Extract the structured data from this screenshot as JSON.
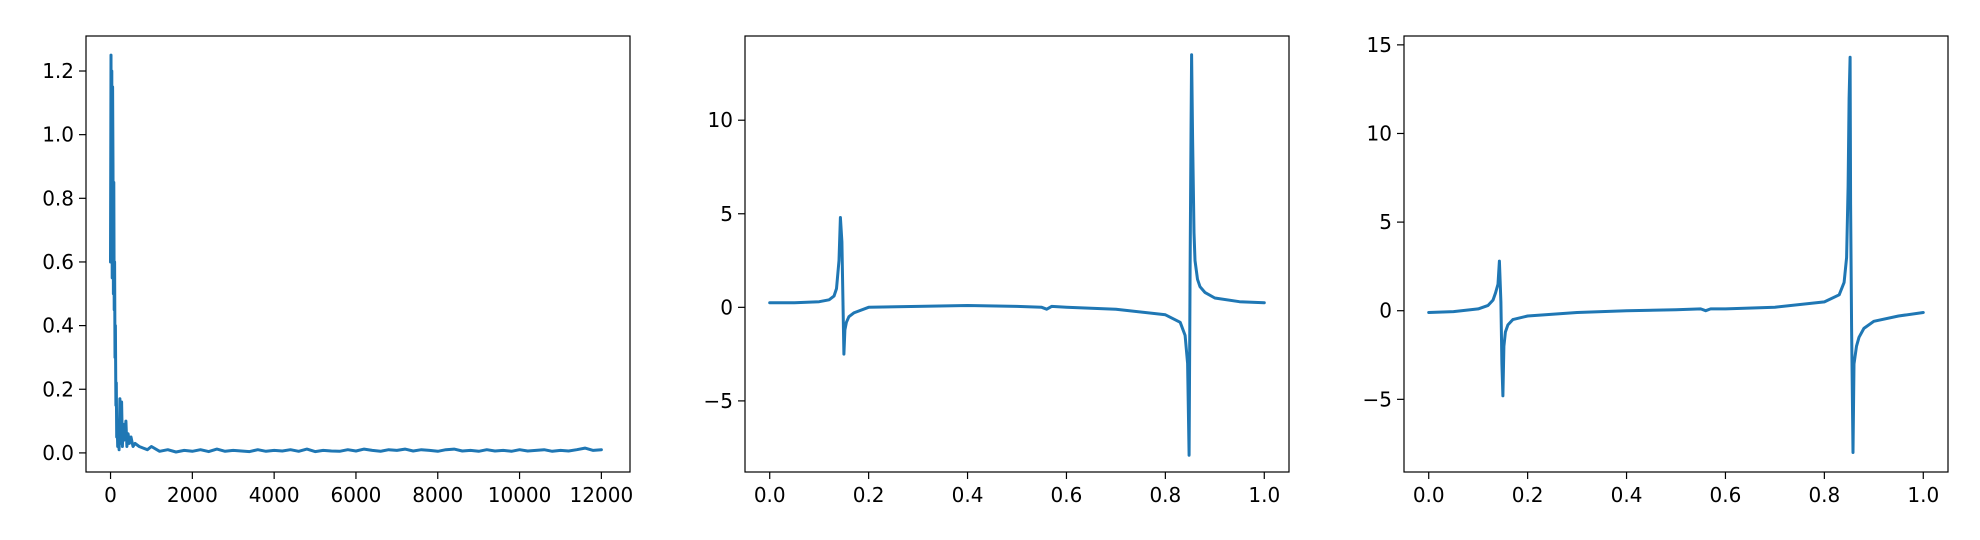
{
  "figure": {
    "line_color": "#1f77b4"
  },
  "chart_data": [
    {
      "type": "line",
      "title": "",
      "xlabel": "",
      "ylabel": "",
      "xlim": [
        -600,
        12700
      ],
      "ylim": [
        -0.06,
        1.31
      ],
      "grid": false,
      "legend": "none",
      "x_ticks": [
        0,
        2000,
        4000,
        6000,
        8000,
        10000,
        12000
      ],
      "x_tick_labels": [
        "0",
        "2000",
        "4000",
        "6000",
        "8000",
        "10000",
        "12000"
      ],
      "y_ticks": [
        0.0,
        0.2,
        0.4,
        0.6,
        0.8,
        1.0,
        1.2
      ],
      "y_tick_labels": [
        "0.0",
        "0.2",
        "0.4",
        "0.6",
        "0.8",
        "1.0",
        "1.2"
      ],
      "series": [
        {
          "x": [
            0,
            10,
            20,
            30,
            40,
            50,
            60,
            70,
            80,
            90,
            100,
            110,
            120,
            130,
            140,
            150,
            160,
            175,
            190,
            210,
            230,
            250,
            270,
            290,
            310,
            330,
            350,
            375,
            400,
            430,
            460,
            500,
            550,
            600,
            700,
            800,
            900,
            1000,
            1200,
            1400,
            1600,
            1800,
            2000,
            2200,
            2400,
            2600,
            2800,
            3000,
            3200,
            3400,
            3600,
            3800,
            4000,
            4200,
            4400,
            4600,
            4800,
            5000,
            5200,
            5400,
            5600,
            5800,
            6000,
            6200,
            6400,
            6600,
            6800,
            7000,
            7200,
            7400,
            7600,
            7800,
            8000,
            8200,
            8400,
            8600,
            8800,
            9000,
            9200,
            9400,
            9600,
            9800,
            10000,
            10200,
            10400,
            10600,
            10800,
            11000,
            11200,
            11400,
            11600,
            11800,
            12000
          ],
          "values": [
            0.6,
            1.25,
            0.62,
            1.2,
            0.55,
            1.15,
            0.9,
            0.5,
            0.85,
            0.45,
            0.6,
            0.3,
            0.4,
            0.15,
            0.22,
            0.05,
            0.1,
            0.02,
            0.06,
            0.01,
            0.17,
            0.03,
            0.16,
            0.02,
            0.09,
            0.04,
            0.06,
            0.1,
            0.02,
            0.06,
            0.03,
            0.05,
            0.02,
            0.03,
            0.02,
            0.015,
            0.01,
            0.02,
            0.005,
            0.01,
            0.003,
            0.008,
            0.005,
            0.01,
            0.004,
            0.012,
            0.005,
            0.008,
            0.006,
            0.004,
            0.01,
            0.005,
            0.008,
            0.006,
            0.01,
            0.005,
            0.012,
            0.004,
            0.008,
            0.006,
            0.005,
            0.01,
            0.006,
            0.012,
            0.008,
            0.005,
            0.01,
            0.008,
            0.012,
            0.006,
            0.01,
            0.008,
            0.005,
            0.01,
            0.012,
            0.006,
            0.008,
            0.005,
            0.01,
            0.006,
            0.008,
            0.005,
            0.01,
            0.006,
            0.008,
            0.01,
            0.005,
            0.008,
            0.006,
            0.01,
            0.015,
            0.008,
            0.01
          ]
        }
      ]
    },
    {
      "type": "line",
      "title": "",
      "xlabel": "",
      "ylabel": "",
      "xlim": [
        -0.05,
        1.05
      ],
      "ylim": [
        -8.8,
        14.5
      ],
      "grid": false,
      "legend": "none",
      "x_ticks": [
        0.0,
        0.2,
        0.4,
        0.6,
        0.8,
        1.0
      ],
      "x_tick_labels": [
        "0.0",
        "0.2",
        "0.4",
        "0.6",
        "0.8",
        "1.0"
      ],
      "y_ticks": [
        -5,
        0,
        5,
        10
      ],
      "y_tick_labels": [
        "−5",
        "0",
        "5",
        "10"
      ],
      "series": [
        {
          "x": [
            0.0,
            0.05,
            0.1,
            0.12,
            0.13,
            0.135,
            0.14,
            0.143,
            0.146,
            0.148,
            0.15,
            0.152,
            0.155,
            0.16,
            0.17,
            0.2,
            0.3,
            0.4,
            0.5,
            0.55,
            0.56,
            0.57,
            0.6,
            0.7,
            0.8,
            0.83,
            0.84,
            0.845,
            0.848,
            0.85,
            0.852,
            0.853,
            0.855,
            0.858,
            0.86,
            0.865,
            0.87,
            0.88,
            0.9,
            0.95,
            1.0
          ],
          "values": [
            0.25,
            0.25,
            0.3,
            0.4,
            0.6,
            1.0,
            2.5,
            4.8,
            3.5,
            0.5,
            -2.5,
            -1.2,
            -0.8,
            -0.5,
            -0.3,
            0.0,
            0.05,
            0.1,
            0.05,
            0.0,
            -0.1,
            0.05,
            0.0,
            -0.1,
            -0.4,
            -0.8,
            -1.5,
            -3.0,
            -7.9,
            2.0,
            10.0,
            13.5,
            9.0,
            4.0,
            2.5,
            1.5,
            1.1,
            0.8,
            0.5,
            0.3,
            0.25
          ]
        }
      ]
    },
    {
      "type": "line",
      "title": "",
      "xlabel": "",
      "ylabel": "",
      "xlim": [
        -0.05,
        1.05
      ],
      "ylim": [
        -9.1,
        15.5
      ],
      "grid": false,
      "legend": "none",
      "x_ticks": [
        0.0,
        0.2,
        0.4,
        0.6,
        0.8,
        1.0
      ],
      "x_tick_labels": [
        "0.0",
        "0.2",
        "0.4",
        "0.6",
        "0.8",
        "1.0"
      ],
      "y_ticks": [
        -5,
        0,
        5,
        10,
        15
      ],
      "y_tick_labels": [
        "−5",
        "0",
        "5",
        "10",
        "15"
      ],
      "series": [
        {
          "x": [
            0.0,
            0.05,
            0.1,
            0.12,
            0.13,
            0.135,
            0.14,
            0.143,
            0.146,
            0.148,
            0.15,
            0.152,
            0.155,
            0.16,
            0.17,
            0.2,
            0.3,
            0.4,
            0.5,
            0.55,
            0.56,
            0.57,
            0.6,
            0.7,
            0.8,
            0.83,
            0.84,
            0.845,
            0.848,
            0.85,
            0.852,
            0.853,
            0.855,
            0.858,
            0.86,
            0.865,
            0.87,
            0.88,
            0.9,
            0.95,
            1.0
          ],
          "values": [
            -0.1,
            -0.05,
            0.1,
            0.3,
            0.6,
            1.0,
            1.5,
            2.8,
            0.5,
            -3.0,
            -4.8,
            -2.0,
            -1.2,
            -0.8,
            -0.5,
            -0.3,
            -0.1,
            0.0,
            0.05,
            0.1,
            0.0,
            0.1,
            0.1,
            0.2,
            0.5,
            0.9,
            1.6,
            3.0,
            7.0,
            12.0,
            14.3,
            6.0,
            -1.0,
            -8.0,
            -3.0,
            -2.0,
            -1.5,
            -1.0,
            -0.6,
            -0.3,
            -0.1
          ]
        }
      ]
    }
  ]
}
